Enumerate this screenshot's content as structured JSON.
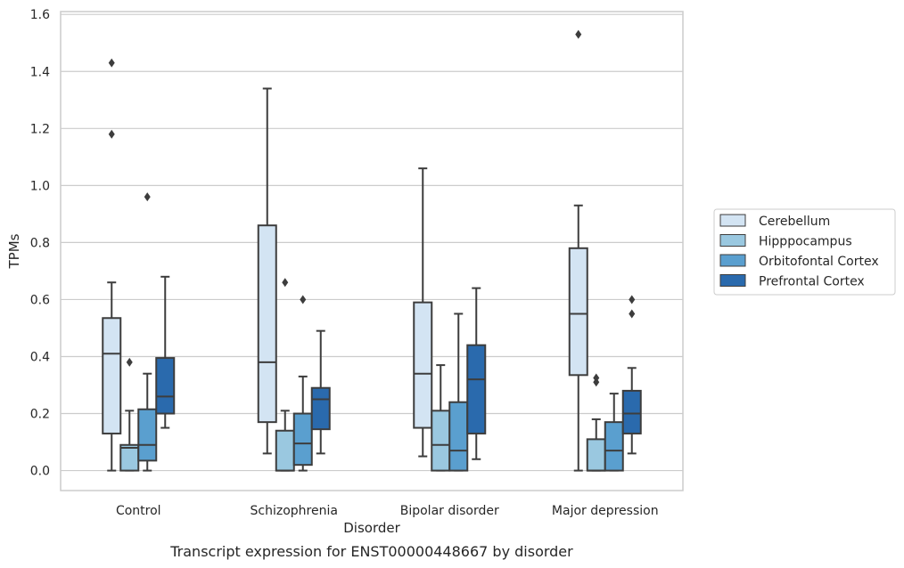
{
  "chart_data": {
    "type": "box",
    "title": "",
    "caption": "Transcript expression for ENST00000448667 by disorder",
    "xlabel": "Disorder",
    "ylabel": "TPMs",
    "ylim": [
      -0.07,
      1.61
    ],
    "yticks": [
      0.0,
      0.2,
      0.4,
      0.6,
      0.8,
      1.0,
      1.2,
      1.4,
      1.6
    ],
    "yticks_labels": [
      "0.0",
      "0.2",
      "0.4",
      "0.6",
      "0.8",
      "1.0",
      "1.2",
      "1.4",
      "1.6"
    ],
    "grid": "horizontal",
    "legend_position": "right",
    "categories": [
      "Control",
      "Schizophrenia",
      "Bipolar disorder",
      "Major depression"
    ],
    "series": [
      {
        "name": "Cerebellum",
        "color": "#d3e4f3",
        "boxes": [
          {
            "whislo": 0.0,
            "q1": 0.13,
            "med": 0.41,
            "q3": 0.535,
            "whishi": 0.66,
            "fliers": [
              1.18,
              1.43
            ]
          },
          {
            "whislo": 0.06,
            "q1": 0.17,
            "med": 0.38,
            "q3": 0.86,
            "whishi": 1.34,
            "fliers": []
          },
          {
            "whislo": 0.05,
            "q1": 0.15,
            "med": 0.34,
            "q3": 0.59,
            "whishi": 1.06,
            "fliers": []
          },
          {
            "whislo": 0.0,
            "q1": 0.335,
            "med": 0.55,
            "q3": 0.78,
            "whishi": 0.93,
            "fliers": [
              1.53
            ]
          }
        ]
      },
      {
        "name": "Hipppocampus",
        "color": "#9ac8e0",
        "boxes": [
          {
            "whislo": 0.0,
            "q1": 0.0,
            "med": 0.08,
            "q3": 0.09,
            "whishi": 0.21,
            "fliers": [
              0.38
            ]
          },
          {
            "whislo": 0.0,
            "q1": 0.0,
            "med": 0.0,
            "q3": 0.14,
            "whishi": 0.21,
            "fliers": [
              0.66
            ]
          },
          {
            "whislo": 0.0,
            "q1": 0.0,
            "med": 0.09,
            "q3": 0.21,
            "whishi": 0.37,
            "fliers": []
          },
          {
            "whislo": 0.0,
            "q1": 0.0,
            "med": 0.0,
            "q3": 0.11,
            "whishi": 0.18,
            "fliers": [
              0.31,
              0.325
            ]
          }
        ]
      },
      {
        "name": "Orbitofontal Cortex",
        "color": "#5a9fcf",
        "boxes": [
          {
            "whislo": 0.0,
            "q1": 0.035,
            "med": 0.09,
            "q3": 0.215,
            "whishi": 0.34,
            "fliers": [
              0.96
            ]
          },
          {
            "whislo": 0.0,
            "q1": 0.02,
            "med": 0.095,
            "q3": 0.2,
            "whishi": 0.33,
            "fliers": [
              0.6
            ]
          },
          {
            "whislo": 0.0,
            "q1": 0.0,
            "med": 0.07,
            "q3": 0.24,
            "whishi": 0.55,
            "fliers": []
          },
          {
            "whislo": 0.0,
            "q1": 0.0,
            "med": 0.07,
            "q3": 0.17,
            "whishi": 0.27,
            "fliers": []
          }
        ]
      },
      {
        "name": "Prefrontal Cortex",
        "color": "#2a6aad",
        "boxes": [
          {
            "whislo": 0.15,
            "q1": 0.2,
            "med": 0.26,
            "q3": 0.395,
            "whishi": 0.68,
            "fliers": []
          },
          {
            "whislo": 0.06,
            "q1": 0.145,
            "med": 0.25,
            "q3": 0.29,
            "whishi": 0.49,
            "fliers": []
          },
          {
            "whislo": 0.04,
            "q1": 0.13,
            "med": 0.32,
            "q3": 0.44,
            "whishi": 0.64,
            "fliers": []
          },
          {
            "whislo": 0.06,
            "q1": 0.13,
            "med": 0.2,
            "q3": 0.28,
            "whishi": 0.36,
            "fliers": [
              0.55,
              0.6
            ]
          }
        ]
      }
    ]
  }
}
